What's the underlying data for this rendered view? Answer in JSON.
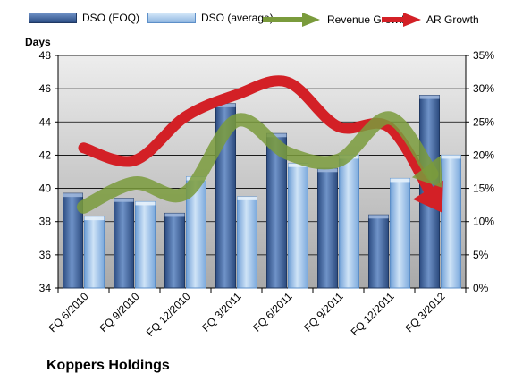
{
  "legend": {
    "dso_eoq": "DSO (EOQ)",
    "dso_avg": "DSO (average)",
    "rev_growth": "Revenue Growth",
    "ar_growth": "AR Growth"
  },
  "company": "Koppers Holdings",
  "chart_data": {
    "type": "bar",
    "ylabel": "Days",
    "ylim": [
      34,
      48
    ],
    "y_ticks": [
      "34",
      "36",
      "38",
      "40",
      "42",
      "44",
      "46",
      "48"
    ],
    "y2lim": [
      0,
      35
    ],
    "y2_ticks": [
      "0%",
      "5%",
      "10%",
      "15%",
      "20%",
      "25%",
      "30%",
      "35%"
    ],
    "categories": [
      "FQ 6/2010",
      "FQ 9/2010",
      "FQ 12/2010",
      "FQ 3/2011",
      "FQ 6/2011",
      "FQ 9/2011",
      "FQ 12/2011",
      "FQ 3/2012"
    ],
    "series": [
      {
        "name": "DSO (EOQ)",
        "axis": "left",
        "kind": "bar",
        "values": [
          39.7,
          39.4,
          38.5,
          45.1,
          43.3,
          41.2,
          38.4,
          45.6
        ]
      },
      {
        "name": "DSO (average)",
        "axis": "right",
        "kind": "bar",
        "values": [
          38.3,
          39.2,
          40.7,
          39.5,
          41.5,
          42.0,
          40.6,
          42.0
        ]
      },
      {
        "name": "Revenue Growth",
        "axis": "right",
        "kind": "line",
        "values": [
          12.2,
          15.8,
          14.3,
          25.2,
          20.3,
          19.2,
          25.6,
          15.5
        ]
      },
      {
        "name": "AR Growth",
        "axis": "right",
        "kind": "line",
        "values": [
          21.1,
          19.2,
          25.8,
          29.1,
          31.0,
          24.3,
          24.2,
          11.8
        ]
      }
    ],
    "colors": {
      "eoq": "#3f6299",
      "avg": "#9cc2ea",
      "revenue": "#7a9b3c",
      "ar": "#d32026",
      "plot_bg": "#b9b9b9"
    },
    "grid": true
  }
}
